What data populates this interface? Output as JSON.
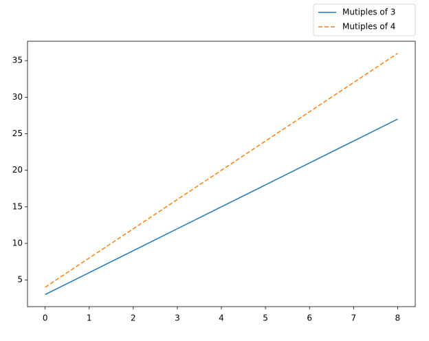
{
  "chart_data": {
    "type": "line",
    "x": [
      0,
      1,
      2,
      3,
      4,
      5,
      6,
      7,
      8
    ],
    "series": [
      {
        "name": "Mutiples of 3",
        "color": "#1f77b4",
        "linestyle": "solid",
        "values": [
          3,
          6,
          9,
          12,
          15,
          18,
          21,
          24,
          27
        ]
      },
      {
        "name": "Mutiples of 4",
        "color": "#ff7f0e",
        "linestyle": "dashed",
        "values": [
          4,
          8,
          12,
          16,
          20,
          24,
          28,
          32,
          36
        ]
      }
    ],
    "xlim": [
      -0.4,
      8.4
    ],
    "xticks": [
      0,
      1,
      2,
      3,
      4,
      5,
      6,
      7,
      8
    ],
    "ylim": [
      1.35,
      37.65
    ],
    "yticks": [
      5,
      10,
      15,
      20,
      25,
      30,
      35
    ],
    "grid": false,
    "legend": "upper right"
  }
}
